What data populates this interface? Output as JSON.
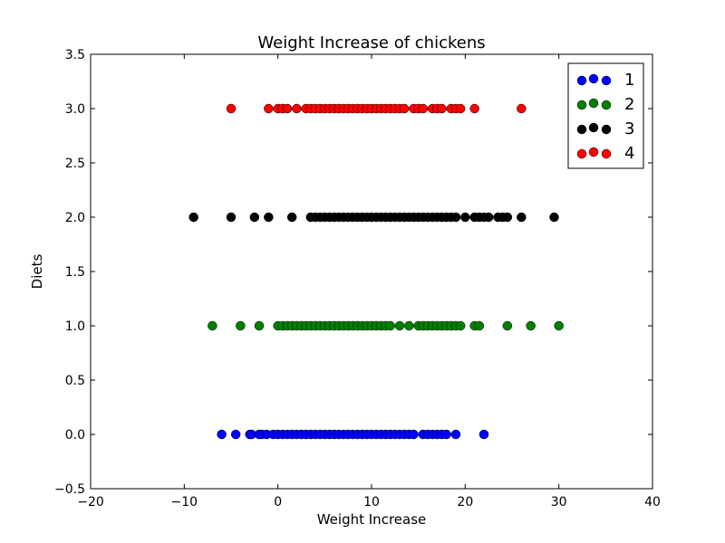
{
  "chart_data": {
    "type": "scatter",
    "title": "Weight Increase of chickens",
    "xlabel": "Weight Increase",
    "ylabel": "Diets",
    "xlim": [
      -20,
      40
    ],
    "ylim": [
      -0.5,
      3.5
    ],
    "xticks": [
      -20,
      -10,
      0,
      10,
      20,
      30,
      40
    ],
    "xtick_labels": [
      "−20",
      "−10",
      "0",
      "10",
      "20",
      "30",
      "40"
    ],
    "yticks": [
      -0.5,
      0.0,
      0.5,
      1.0,
      1.5,
      2.0,
      2.5,
      3.0,
      3.5
    ],
    "ytick_labels": [
      "−0.5",
      "0.0",
      "0.5",
      "1.0",
      "1.5",
      "2.0",
      "2.5",
      "3.0",
      "3.5"
    ],
    "grid": false,
    "legend_position": "top-right",
    "series": [
      {
        "name": "1",
        "color": "#0000ff",
        "y": 0.0,
        "x": [
          -6,
          -4.5,
          -3,
          -2.8,
          -2,
          -1.7,
          -1.2,
          -0.5,
          0,
          0.5,
          1,
          1.5,
          2,
          2.5,
          3,
          3.5,
          4,
          4.5,
          5,
          5.5,
          6,
          6.5,
          7,
          7.5,
          8,
          8.5,
          9,
          9.5,
          10,
          10.5,
          11,
          11.5,
          12,
          12.5,
          13,
          13.5,
          14,
          14.5,
          15.5,
          16,
          16.5,
          17,
          17.5,
          18,
          19,
          22
        ]
      },
      {
        "name": "2",
        "color": "#008000",
        "y": 1.0,
        "x": [
          -7,
          -4,
          -2,
          0,
          0.5,
          1,
          1.5,
          2,
          2.5,
          3,
          3.5,
          4,
          4.5,
          5,
          5.5,
          6,
          6.5,
          7,
          7.5,
          8,
          8.5,
          9,
          9.5,
          10,
          10.5,
          11,
          11.5,
          12,
          13,
          14,
          15,
          15.5,
          16,
          16.5,
          17,
          17.5,
          18,
          18.5,
          19,
          19.5,
          21,
          21.5,
          24.5,
          27,
          30
        ]
      },
      {
        "name": "3",
        "color": "#000000",
        "y": 2.0,
        "x": [
          -9,
          -5,
          -2.5,
          -1,
          1.5,
          3.5,
          4,
          4.5,
          5,
          5.5,
          6,
          6.5,
          7,
          7.5,
          8,
          8.5,
          9,
          9.5,
          10,
          10.5,
          11,
          11.5,
          12,
          12.5,
          13,
          13.5,
          14,
          14.5,
          15,
          15.5,
          16,
          16.5,
          17,
          17.5,
          18,
          18.5,
          19,
          20,
          21,
          21.5,
          22,
          22.5,
          23.5,
          24,
          24.5,
          26,
          29.5
        ]
      },
      {
        "name": "4",
        "color": "#ff0000",
        "y": 3.0,
        "x": [
          -5,
          -1,
          0,
          0.5,
          1,
          2,
          3,
          3.5,
          4,
          4.5,
          5,
          5.5,
          6,
          6.5,
          7,
          7.5,
          8,
          8.5,
          9,
          9.5,
          10,
          10.5,
          11,
          11.5,
          12,
          12.5,
          13,
          13.5,
          14.5,
          15,
          15.5,
          16.5,
          17,
          17.5,
          18.5,
          19,
          19.5,
          21,
          26
        ]
      }
    ]
  }
}
